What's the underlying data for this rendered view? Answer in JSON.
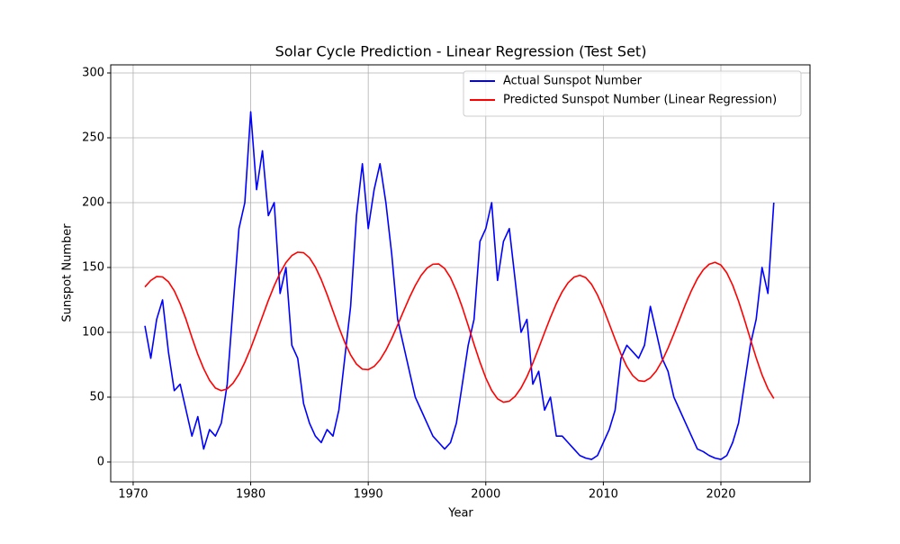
{
  "chart_data": {
    "type": "line",
    "title": "Solar Cycle Prediction - Linear Regression (Test Set)",
    "x_label": "Year",
    "y_label": "Sunspot Number",
    "x": [
      1971.0,
      1971.5,
      1972.0,
      1972.5,
      1973.0,
      1973.5,
      1974.0,
      1974.5,
      1975.0,
      1975.5,
      1976.0,
      1976.5,
      1977.0,
      1977.5,
      1978.0,
      1978.5,
      1979.0,
      1979.5,
      1980.0,
      1980.5,
      1981.0,
      1981.5,
      1982.0,
      1982.5,
      1983.0,
      1983.5,
      1984.0,
      1984.5,
      1985.0,
      1985.5,
      1986.0,
      1986.5,
      1987.0,
      1987.5,
      1988.0,
      1988.5,
      1989.0,
      1989.5,
      1990.0,
      1990.5,
      1991.0,
      1991.5,
      1992.0,
      1992.5,
      1993.0,
      1993.5,
      1994.0,
      1994.5,
      1995.0,
      1995.5,
      1996.0,
      1996.5,
      1997.0,
      1997.5,
      1998.0,
      1998.5,
      1999.0,
      1999.5,
      2000.0,
      2000.5,
      2001.0,
      2001.5,
      2002.0,
      2002.5,
      2003.0,
      2003.5,
      2004.0,
      2004.5,
      2005.0,
      2005.5,
      2006.0,
      2006.5,
      2007.0,
      2007.5,
      2008.0,
      2008.5,
      2009.0,
      2009.5,
      2010.0,
      2010.5,
      2011.0,
      2011.5,
      2012.0,
      2012.5,
      2013.0,
      2013.5,
      2014.0,
      2014.5,
      2015.0,
      2015.5,
      2016.0,
      2016.5,
      2017.0,
      2017.5,
      2018.0,
      2018.5,
      2019.0,
      2019.5,
      2020.0,
      2020.5,
      2021.0,
      2021.5,
      2022.0,
      2022.5,
      2023.0,
      2023.5,
      2024.0,
      2024.5
    ],
    "series": [
      {
        "name": "Actual Sunspot Number",
        "color": "#0000ff",
        "values": [
          105,
          80,
          110,
          125,
          85,
          55,
          60,
          40,
          20,
          35,
          10,
          25,
          20,
          30,
          60,
          120,
          180,
          200,
          270,
          210,
          240,
          190,
          200,
          130,
          150,
          90,
          80,
          45,
          30,
          20,
          15,
          25,
          20,
          40,
          80,
          120,
          190,
          230,
          180,
          210,
          230,
          200,
          160,
          110,
          90,
          70,
          50,
          40,
          30,
          20,
          15,
          10,
          15,
          30,
          60,
          90,
          110,
          170,
          180,
          200,
          140,
          170,
          180,
          140,
          100,
          110,
          60,
          70,
          40,
          50,
          20,
          20,
          15,
          10,
          5,
          3,
          2,
          5,
          15,
          25,
          40,
          80,
          90,
          85,
          80,
          90,
          120,
          100,
          80,
          70,
          50,
          40,
          30,
          20,
          10,
          8,
          5,
          3,
          2,
          5,
          15,
          30,
          60,
          90,
          110,
          150,
          130,
          200
        ]
      },
      {
        "name": "Predicted Sunspot Number (Linear Regression)",
        "color": "#ff0000",
        "values": [
          135,
          140,
          143,
          142.7,
          139,
          132,
          122,
          110,
          96,
          83,
          72,
          63,
          57,
          55,
          56.4,
          60.8,
          67.7,
          76.9,
          87.7,
          99.8,
          112.2,
          124.6,
          135.9,
          145.8,
          153.8,
          159.2,
          161.8,
          161.4,
          157.5,
          150.4,
          140.7,
          129.1,
          116.5,
          103.9,
          92.3,
          82.6,
          75.5,
          71.6,
          71.2,
          73.7,
          78.8,
          86.2,
          95.3,
          105.6,
          116.3,
          126.7,
          136.1,
          143.9,
          149.5,
          152.5,
          152.7,
          149.2,
          142.1,
          131.9,
          119.3,
          105.3,
          90.8,
          77.1,
          64.8,
          55.2,
          48.7,
          46.1,
          46.9,
          50.7,
          57.1,
          65.8,
          76.2,
          87.8,
          99.8,
          111.5,
          122.2,
          131.3,
          138.2,
          142.5,
          144,
          142.2,
          137.0,
          128.8,
          118.4,
          106.6,
          94.6,
          83.2,
          73.6,
          66.6,
          62.7,
          62.2,
          64.9,
          70.2,
          78.0,
          87.8,
          98.8,
          110.3,
          121.8,
          132.3,
          141.4,
          148.2,
          152.5,
          154,
          151.9,
          145.9,
          136.4,
          124.1,
          110.0,
          95.0,
          80.4,
          67.2,
          56.5,
          49.0
        ]
      }
    ],
    "xlim": [
      1968.09,
      2027.58
    ],
    "xticks": [
      1970,
      1980,
      1990,
      2000,
      2010,
      2020
    ],
    "ylim": [
      -15.3,
      306.25
    ],
    "yticks": [
      0,
      50,
      100,
      150,
      200,
      250,
      300
    ],
    "grid": true,
    "legend": "upper right"
  }
}
